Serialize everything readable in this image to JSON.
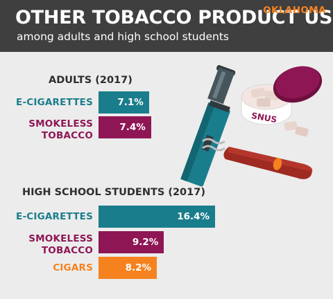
{
  "header": {
    "title": "OTHER TOBACCO PRODUCT USE",
    "subtitle": "among adults and high school students",
    "state": "OKLAHOMA"
  },
  "illustration": {
    "snus_label": "SNUS"
  },
  "colors": {
    "e_cigarettes": "#1a7d8c",
    "smokeless_tobacco": "#8e1655",
    "cigars": "#f5821f",
    "header_bg": "#3f3f3f",
    "background": "#ececec"
  },
  "chart_data": [
    {
      "type": "bar",
      "orientation": "horizontal",
      "title": "ADULTS (2017)",
      "categories": [
        "E-CIGARETTES",
        "SMOKELESS TOBACCO"
      ],
      "values": [
        7.1,
        7.4
      ],
      "value_labels": [
        "7.1%",
        "7.4%"
      ],
      "unit": "%"
    },
    {
      "type": "bar",
      "orientation": "horizontal",
      "title": "HIGH SCHOOL STUDENTS (2017)",
      "categories": [
        "E-CIGARETTES",
        "SMOKELESS TOBACCO",
        "CIGARS"
      ],
      "values": [
        16.4,
        9.2,
        8.2
      ],
      "value_labels": [
        "16.4%",
        "9.2%",
        "8.2%"
      ],
      "unit": "%"
    }
  ]
}
